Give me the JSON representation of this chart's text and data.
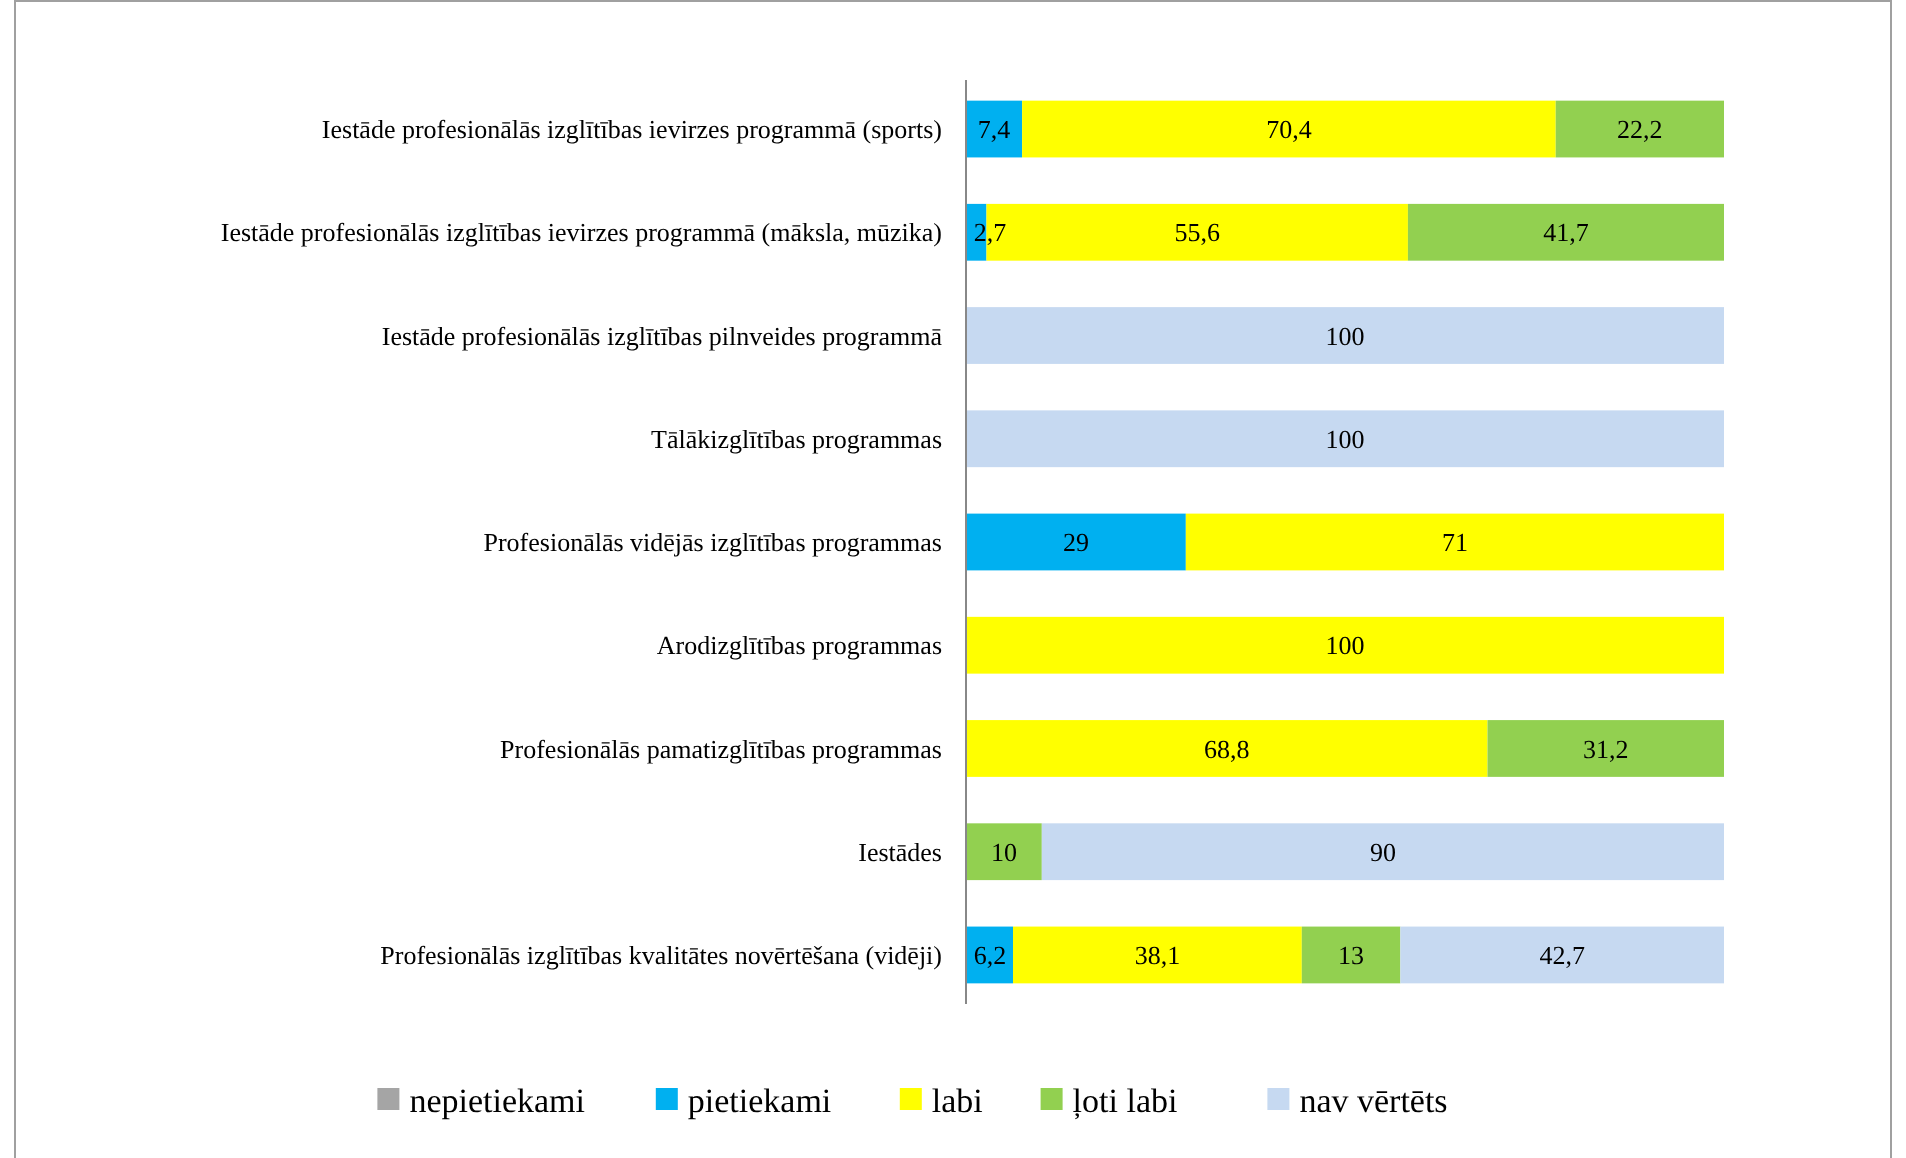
{
  "chart_data": {
    "type": "bar",
    "orientation": "horizontal",
    "stacked": true,
    "xlim": [
      0,
      100
    ],
    "tick_labels": "y",
    "legend": "bottom",
    "categories": [
      "Iestāde profesionālās izglītības ievirzes programmā (sports)",
      "Iestāde profesionālās izglītības ievirzes programmā (māksla, mūzika)",
      "Iestāde profesionālās izglītības pilnveides programmā ",
      "Tālākizglītības programmas",
      "Profesionālās vidējās izglītības programmas",
      "Arodizglītības programmas",
      "Profesionālās pamatizglītības programmas",
      "Iestādes",
      "Profesionālās izglītības kvalitātes novērtēšana (vidēji)"
    ],
    "series": [
      {
        "name": "nepietiekami",
        "color": "#a5a5a5",
        "values": [
          null,
          null,
          null,
          null,
          null,
          null,
          null,
          null,
          null
        ],
        "value_labels": [
          null,
          null,
          null,
          null,
          null,
          null,
          null,
          null,
          null
        ]
      },
      {
        "name": "pietiekami",
        "color": "#00b0f0",
        "values": [
          7.4,
          2.7,
          null,
          null,
          29,
          null,
          null,
          null,
          6.2
        ],
        "value_labels": [
          "7,4",
          "2,7",
          null,
          null,
          "29",
          null,
          null,
          null,
          "6,2"
        ]
      },
      {
        "name": "labi",
        "color": "#ffff00",
        "values": [
          70.4,
          55.6,
          null,
          null,
          71,
          100,
          68.8,
          null,
          38.1
        ],
        "value_labels": [
          "70,4",
          "55,6",
          null,
          null,
          "71",
          "100",
          "68,8",
          null,
          "38,1"
        ]
      },
      {
        "name": "ļoti labi",
        "color": "#92d050",
        "values": [
          22.2,
          41.7,
          null,
          null,
          null,
          null,
          31.2,
          10,
          13
        ],
        "value_labels": [
          "22,2",
          "41,7",
          null,
          null,
          null,
          null,
          "31,2",
          "10",
          "13"
        ]
      },
      {
        "name": "nav vērtēts",
        "color": "#c6d9f1",
        "values": [
          null,
          null,
          100,
          100,
          null,
          null,
          null,
          90,
          42.7
        ],
        "value_labels": [
          null,
          null,
          "100",
          "100",
          null,
          null,
          null,
          "90",
          "42,7"
        ]
      }
    ]
  }
}
